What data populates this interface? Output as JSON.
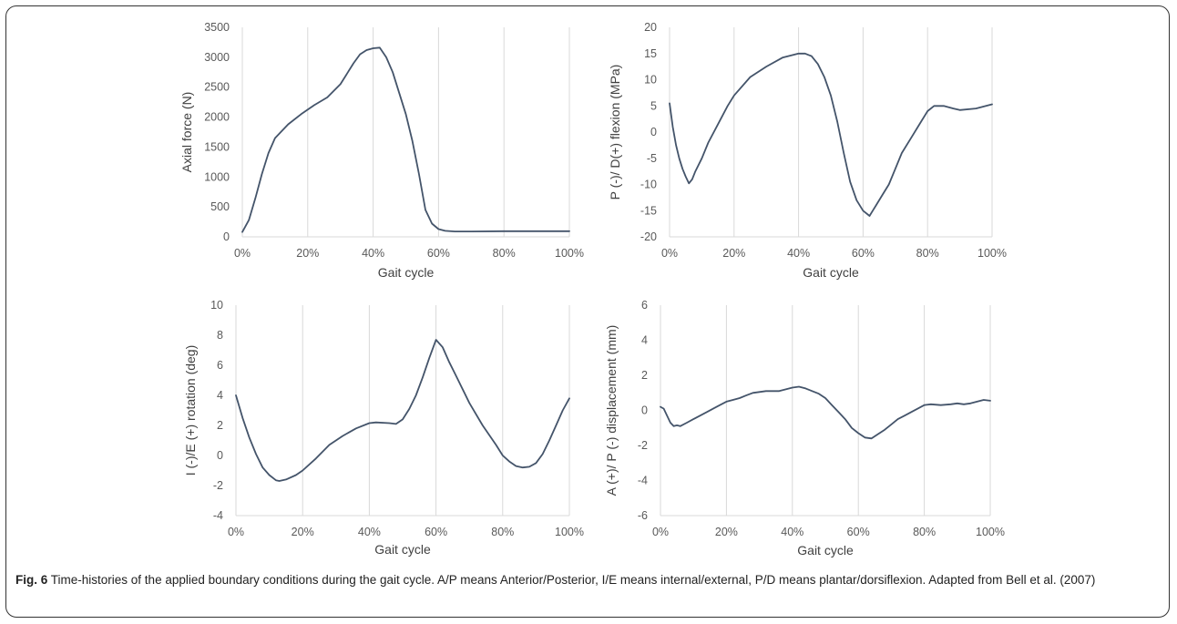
{
  "caption": {
    "label": "Fig. 6",
    "text": "Time-histories of the applied boundary conditions during the gait cycle. A/P means Anterior/Posterior, I/E means internal/external, P/D means plantar/dorsiflexion. Adapted from Bell et al. (2007)"
  },
  "colors": {
    "line": "#44546a",
    "grid": "#d9d9d9",
    "tick": "#595959"
  },
  "chart_data": [
    {
      "type": "line",
      "title": "",
      "xlabel": "Gait cycle",
      "ylabel": "Axial force (N)",
      "xlim": [
        0,
        100
      ],
      "ylim": [
        0,
        3500
      ],
      "x_ticks": [
        "0%",
        "20%",
        "40%",
        "60%",
        "80%",
        "100%"
      ],
      "y_ticks": [
        "0",
        "500",
        "1000",
        "1500",
        "2000",
        "2500",
        "3000",
        "3500"
      ],
      "grid": "vertical",
      "series": [
        {
          "x": [
            0,
            2,
            4,
            6,
            8,
            10,
            14,
            18,
            22,
            26,
            30,
            34,
            36,
            38,
            40,
            42,
            44,
            46,
            48,
            50,
            52,
            54,
            56,
            58,
            60,
            62,
            65,
            70,
            80,
            90,
            100
          ],
          "y": [
            80,
            280,
            650,
            1050,
            1400,
            1650,
            1880,
            2050,
            2200,
            2330,
            2550,
            2900,
            3050,
            3120,
            3150,
            3160,
            3000,
            2750,
            2400,
            2050,
            1600,
            1050,
            450,
            220,
            130,
            100,
            90,
            90,
            95,
            95,
            95
          ]
        }
      ]
    },
    {
      "type": "line",
      "title": "",
      "xlabel": "Gait cycle",
      "ylabel": "P (-)/ D(+) flexion (MPa)",
      "xlim": [
        0,
        100
      ],
      "ylim": [
        -20,
        20
      ],
      "x_ticks": [
        "0%",
        "20%",
        "40%",
        "60%",
        "80%",
        "100%"
      ],
      "y_ticks": [
        "-20",
        "-15",
        "-10",
        "-5",
        "0",
        "5",
        "10",
        "15",
        "20"
      ],
      "grid": "vertical",
      "series": [
        {
          "x": [
            0,
            1,
            2,
            3,
            4,
            5,
            6,
            7,
            8,
            10,
            12,
            15,
            18,
            20,
            25,
            30,
            35,
            40,
            42,
            44,
            46,
            48,
            50,
            52,
            54,
            56,
            58,
            60,
            62,
            63,
            64,
            66,
            68,
            70,
            72,
            75,
            78,
            80,
            82,
            85,
            88,
            90,
            95,
            100
          ],
          "y": [
            5.5,
            1,
            -2.5,
            -5,
            -7,
            -8.5,
            -9.8,
            -9,
            -7.5,
            -5,
            -2,
            1.5,
            5,
            7,
            10.5,
            12.5,
            14.2,
            15,
            15,
            14.5,
            13,
            10.5,
            7,
            2,
            -4,
            -9.5,
            -13,
            -15,
            -16,
            -15,
            -14,
            -12,
            -10,
            -7,
            -4,
            -1,
            2,
            4,
            5,
            5,
            4.5,
            4.2,
            4.5,
            5.3
          ]
        }
      ]
    },
    {
      "type": "line",
      "title": "",
      "xlabel": "Gait cycle",
      "ylabel": "I (-)/E (+) rotation (deg)",
      "xlim": [
        0,
        100
      ],
      "ylim": [
        -4,
        10
      ],
      "x_ticks": [
        "0%",
        "20%",
        "40%",
        "60%",
        "80%",
        "100%"
      ],
      "y_ticks": [
        "-4",
        "-2",
        "0",
        "2",
        "4",
        "6",
        "8",
        "10"
      ],
      "grid": "vertical",
      "series": [
        {
          "x": [
            0,
            2,
            4,
            6,
            8,
            10,
            12,
            13,
            15,
            18,
            20,
            24,
            28,
            32,
            36,
            40,
            42,
            46,
            48,
            50,
            52,
            54,
            56,
            58,
            60,
            62,
            64,
            66,
            70,
            74,
            78,
            80,
            82,
            84,
            86,
            88,
            90,
            92,
            94,
            96,
            98,
            100
          ],
          "y": [
            4,
            2.5,
            1.2,
            0.1,
            -0.8,
            -1.3,
            -1.65,
            -1.7,
            -1.6,
            -1.3,
            -1,
            -0.2,
            0.7,
            1.3,
            1.8,
            2.15,
            2.2,
            2.15,
            2.1,
            2.4,
            3.1,
            4,
            5.2,
            6.5,
            7.7,
            7.2,
            6.2,
            5.3,
            3.5,
            2,
            0.7,
            0,
            -0.4,
            -0.7,
            -0.8,
            -0.75,
            -0.5,
            0.1,
            1,
            2,
            3,
            3.8
          ]
        }
      ]
    },
    {
      "type": "line",
      "title": "",
      "xlabel": "Gait cycle",
      "ylabel": "A (+)/ P (-) displacement (mm)",
      "xlim": [
        0,
        100
      ],
      "ylim": [
        -6,
        6
      ],
      "x_ticks": [
        "0%",
        "20%",
        "40%",
        "60%",
        "80%",
        "100%"
      ],
      "y_ticks": [
        "-6",
        "-4",
        "-2",
        "0",
        "2",
        "4",
        "6"
      ],
      "grid": "vertical",
      "series": [
        {
          "x": [
            0,
            1,
            2,
            3,
            4,
            5,
            6,
            8,
            10,
            12,
            14,
            16,
            18,
            20,
            22,
            24,
            26,
            28,
            30,
            32,
            34,
            36,
            38,
            40,
            42,
            44,
            46,
            48,
            50,
            52,
            54,
            56,
            58,
            60,
            62,
            64,
            66,
            68,
            70,
            72,
            74,
            76,
            78,
            80,
            82,
            85,
            88,
            90,
            92,
            94,
            96,
            98,
            100
          ],
          "y": [
            0.2,
            0.1,
            -0.3,
            -0.7,
            -0.9,
            -0.85,
            -0.9,
            -0.7,
            -0.5,
            -0.3,
            -0.1,
            0.1,
            0.3,
            0.5,
            0.6,
            0.7,
            0.85,
            1.0,
            1.05,
            1.1,
            1.1,
            1.1,
            1.2,
            1.3,
            1.35,
            1.25,
            1.1,
            0.95,
            0.7,
            0.3,
            -0.1,
            -0.5,
            -1.0,
            -1.3,
            -1.55,
            -1.6,
            -1.35,
            -1.1,
            -0.8,
            -0.5,
            -0.3,
            -0.1,
            0.1,
            0.3,
            0.35,
            0.3,
            0.35,
            0.4,
            0.35,
            0.4,
            0.5,
            0.6,
            0.55
          ]
        }
      ]
    }
  ]
}
